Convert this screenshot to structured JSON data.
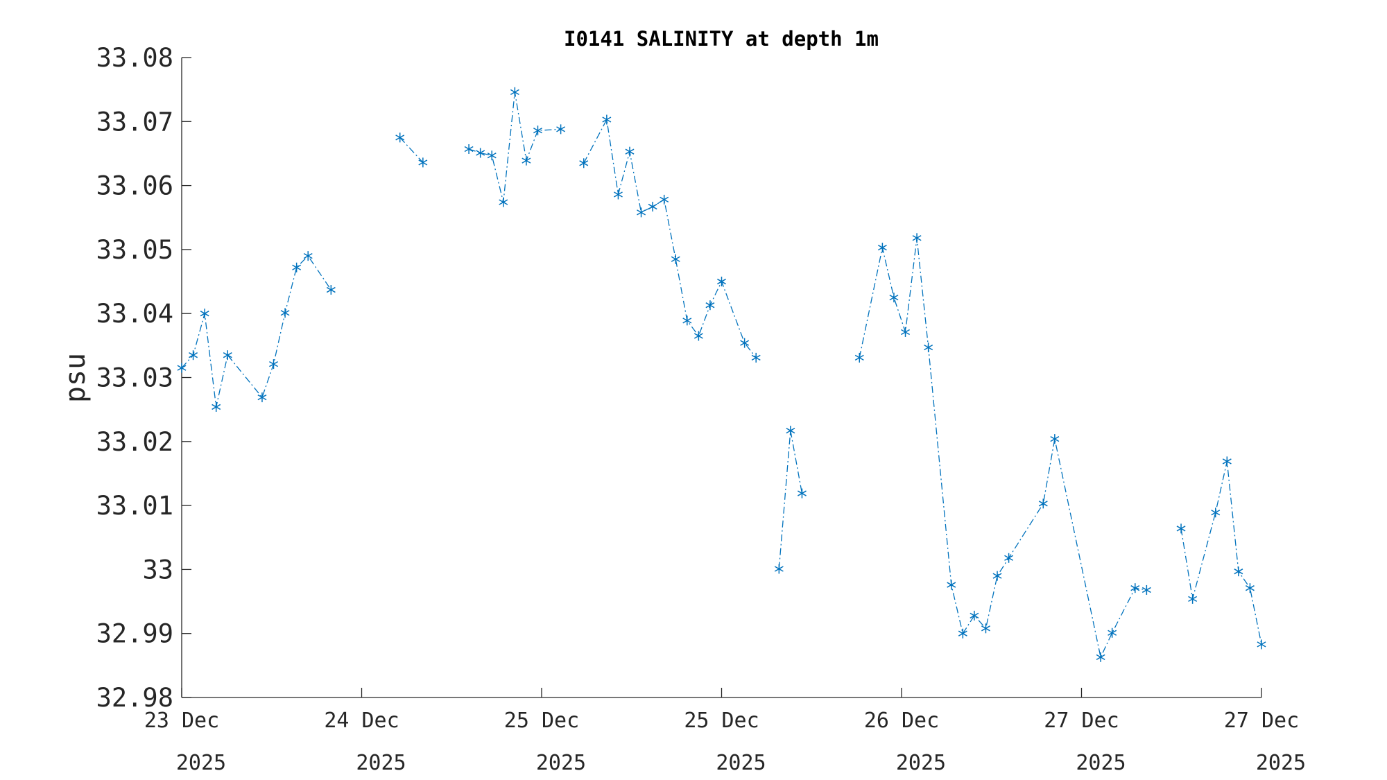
{
  "chart_data": {
    "type": "line",
    "title": "I0141 SALINITY at depth 1m",
    "xlabel": "",
    "ylabel": "psu",
    "ylim": [
      32.98,
      33.08
    ],
    "yticks": [
      32.98,
      32.99,
      33,
      33.01,
      33.02,
      33.03,
      33.04,
      33.05,
      33.06,
      33.07,
      33.08
    ],
    "ytick_labels": [
      "32.98",
      "32.99",
      "33",
      "33.01",
      "33.02",
      "33.03",
      "33.04",
      "33.05",
      "33.06",
      "33.07",
      "33.08"
    ],
    "x_units": "sample index",
    "xlim": [
      0,
      94
    ],
    "xticks": [
      0,
      15.667,
      31.333,
      47,
      62.667,
      78.333,
      94
    ],
    "xtick_labels": [
      [
        "23 Dec",
        "2025"
      ],
      [
        "24 Dec",
        "2025"
      ],
      [
        "25 Dec",
        "2025"
      ],
      [
        "25 Dec",
        "2025"
      ],
      [
        "26 Dec",
        "2025"
      ],
      [
        "27 Dec",
        "2025"
      ],
      [
        "27 Dec",
        "2025"
      ]
    ],
    "grid": false,
    "series": [
      {
        "name": "salinity",
        "color": "#0072BD",
        "marker": "asterisk",
        "linestyle": "dash-dot",
        "segments": [
          [
            [
              0,
              33.0315
            ],
            [
              1,
              33.0335
            ],
            [
              2,
              33.04
            ],
            [
              3,
              33.0254
            ],
            [
              4,
              33.0335
            ],
            [
              7,
              33.0269
            ],
            [
              8,
              33.0321
            ],
            [
              9,
              33.0401
            ],
            [
              10,
              33.0472
            ],
            [
              11,
              33.049
            ],
            [
              13,
              33.0437
            ]
          ],
          [
            [
              19,
              33.0675
            ],
            [
              21,
              33.0636
            ]
          ],
          [
            [
              25,
              33.0657
            ],
            [
              26,
              33.0651
            ],
            [
              27,
              33.0647
            ],
            [
              28,
              33.0574
            ],
            [
              29,
              33.0746
            ],
            [
              30,
              33.0639
            ],
            [
              31,
              33.0686
            ],
            [
              33,
              33.0688
            ]
          ],
          [
            [
              35,
              33.0635
            ],
            [
              37,
              33.0703
            ],
            [
              38,
              33.0586
            ],
            [
              39,
              33.0653
            ],
            [
              40,
              33.0558
            ],
            [
              41,
              33.0567
            ],
            [
              42,
              33.0578
            ],
            [
              43,
              33.0485
            ],
            [
              44,
              33.0389
            ],
            [
              45,
              33.0365
            ],
            [
              46,
              33.0413
            ],
            [
              47,
              33.045
            ],
            [
              49,
              33.0354
            ],
            [
              50,
              33.0331
            ]
          ],
          [
            [
              52,
              33.0001
            ],
            [
              53,
              33.0217
            ],
            [
              54,
              33.0119
            ]
          ],
          [
            [
              59,
              33.0331
            ],
            [
              61,
              33.0503
            ],
            [
              62,
              33.0425
            ],
            [
              63,
              33.0371
            ],
            [
              64,
              33.0518
            ],
            [
              65,
              33.0347
            ],
            [
              67,
              32.9976
            ],
            [
              68,
              32.99
            ],
            [
              69,
              32.9928
            ],
            [
              70,
              32.9908
            ],
            [
              71,
              32.999
            ],
            [
              72,
              33.0018
            ],
            [
              75,
              33.0103
            ],
            [
              76,
              33.0204
            ],
            [
              80,
              32.9863
            ],
            [
              81,
              32.9901
            ],
            [
              83,
              32.9971
            ],
            [
              84,
              32.9968
            ]
          ],
          [
            [
              87,
              33.0064
            ],
            [
              88,
              32.9954
            ],
            [
              90,
              33.0089
            ],
            [
              91,
              33.0169
            ],
            [
              92,
              32.9997
            ],
            [
              93,
              32.9971
            ],
            [
              94,
              32.9883
            ]
          ]
        ]
      }
    ]
  }
}
